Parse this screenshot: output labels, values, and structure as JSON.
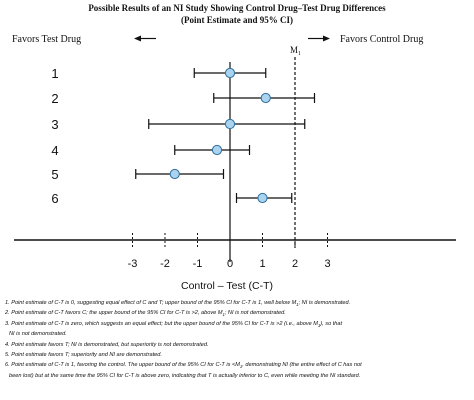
{
  "chart_data": {
    "type": "scatter",
    "title_line1": "Possible Results of an NI Study Showing Control Drug–Test Drug Differences",
    "title_line2": "(Point Estimate and 95% CI)",
    "favors_left": "Favors Test Drug",
    "favors_right": "Favors Control Drug",
    "margin_label": "M",
    "margin_label_sub": "1",
    "margin_value": 2,
    "xlabel": "Control – Test (C-T)",
    "xlim": [
      -3.3,
      3.3
    ],
    "x_ticks": [
      -3,
      -2,
      -1,
      0,
      1,
      2,
      3
    ],
    "x_tick_labels": [
      "-3",
      "-2",
      "-1",
      "0",
      "1",
      "2",
      "3"
    ],
    "rows": [
      {
        "label": "1",
        "estimate": 0.0,
        "lower": -1.1,
        "upper": 1.1
      },
      {
        "label": "2",
        "estimate": 1.1,
        "lower": -0.5,
        "upper": 2.6
      },
      {
        "label": "3",
        "estimate": 0.0,
        "lower": -2.5,
        "upper": 2.3
      },
      {
        "label": "4",
        "estimate": -0.4,
        "lower": -1.7,
        "upper": 0.6
      },
      {
        "label": "5",
        "estimate": -1.7,
        "lower": -2.9,
        "upper": -0.2
      },
      {
        "label": "6",
        "estimate": 1.0,
        "lower": 0.2,
        "upper": 1.9
      }
    ]
  },
  "notes": [
    {
      "text": "1. Point estimate of C-T is 0, suggesting equal effect of C and T; upper bound of the 95% CI for C-T is 1, well below M",
      "sub": "1",
      "after": "; NI is demonstrated."
    },
    {
      "text": "2. Point estimate of C-T favors C; the upper bound of the 95% CI for C-T is >2, above M",
      "sub": "1",
      "after": "; NI is not demonstrated."
    },
    {
      "text": "3. Point estimate of C-T is zero, which suggests an equal effect; but the upper bound of the 95% CI for C-T is >2 (i.e., above M",
      "sub": "1",
      "after": "), so that"
    },
    {
      "text": "NI is not demonstrated.",
      "sub": "",
      "after": "",
      "indent": true
    },
    {
      "text": "4. Point estimate favors T; NI is demonstrated, but superiority is not demonstrated.",
      "sub": "",
      "after": ""
    },
    {
      "text": "5. Point estimate favors T; superiority and NI are demonstrated.",
      "sub": "",
      "after": ""
    },
    {
      "text": "6. Point estimate of C-T is 1, favoring the control. The upper bound of the 95% CI for C-T is <M",
      "sub": "1",
      "after": ", demonstrating NI (the entire effect of C has not"
    },
    {
      "text": "been lost) but at the same time the 95% CI for C-T is above zero, indicating that T is actually inferior to C, even while meeting the NI standard.",
      "sub": "",
      "after": "",
      "indent": true
    }
  ]
}
